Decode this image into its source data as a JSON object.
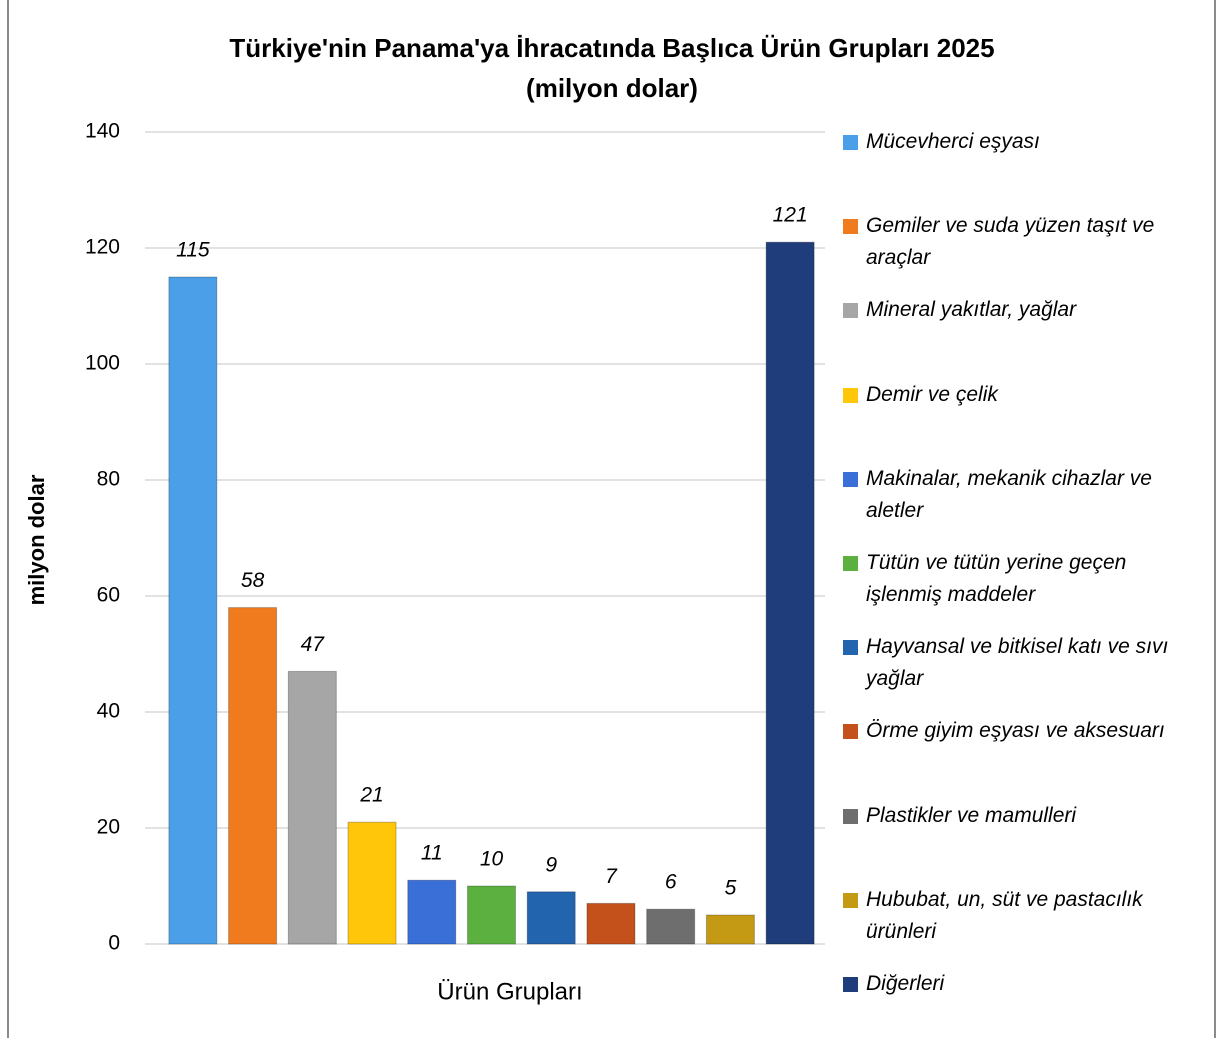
{
  "chart_data": {
    "type": "bar",
    "title": "Türkiye'nin Panama'ya İhracatında Başlıca Ürün Grupları 2025",
    "subtitle": "(milyon dolar)",
    "x_label": "Ürün Grupları",
    "y_label": "milyon dolar",
    "categories": [
      "Mücevherci eşyası",
      "Gemiler ve suda yüzen taşıt ve araçlar",
      "Mineral yakıtlar, yağlar",
      "Demir ve çelik",
      "Makinalar, mekanik cihazlar ve aletler",
      "Tütün ve tütün yerine geçen işlenmiş maddeler",
      "Hayvansal ve bitkisel katı ve sıvı yağlar",
      "Örme giyim eşyası ve aksesuarı",
      "Plastikler ve mamulleri",
      "Hububat, un, süt ve pastacılık ürünleri",
      "Diğerleri"
    ],
    "values": [
      115,
      58,
      47,
      21,
      11,
      10,
      9,
      7,
      6,
      5,
      121
    ],
    "colors": [
      "#4a9fe8",
      "#f07b1e",
      "#a6a6a6",
      "#ffc60a",
      "#3a6fd8",
      "#5cb040",
      "#2264ae",
      "#c4501c",
      "#6e6e6e",
      "#c49a14",
      "#1f3d7a"
    ],
    "ylim": [
      0,
      140
    ],
    "yticks": [
      0,
      20,
      40,
      60,
      80,
      100,
      120,
      140
    ],
    "grid": true,
    "legend": "right"
  }
}
